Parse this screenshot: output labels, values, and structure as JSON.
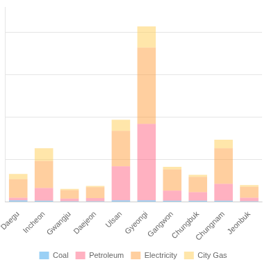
{
  "chart_data": {
    "type": "bar",
    "stacked": true,
    "categories": [
      "Daegu",
      "Incheon",
      "Gwangju",
      "Daejeon",
      "Ulsan",
      "Gyeongi",
      "Gangwon",
      "Chungbuk",
      "Chungnam",
      "Jeonbuk"
    ],
    "series": [
      {
        "name": "Coal",
        "values": [
          0.2,
          0.15,
          0.1,
          0.1,
          0.2,
          0.2,
          0.15,
          0.15,
          0.15,
          0.1
        ]
      },
      {
        "name": "Petroleum",
        "values": [
          0.3,
          1.5,
          0.3,
          0.35,
          4.0,
          9.0,
          1.2,
          1.0,
          2.0,
          0.4
        ]
      },
      {
        "name": "Electricity",
        "values": [
          2.2,
          3.2,
          1.0,
          1.3,
          4.2,
          9.0,
          2.5,
          1.8,
          4.2,
          1.3
        ]
      },
      {
        "name": "City Gas",
        "values": [
          0.6,
          1.5,
          0.15,
          0.15,
          1.3,
          2.5,
          0.3,
          0.25,
          1.0,
          0.2
        ]
      }
    ],
    "ylim": [
      0,
      23
    ],
    "yticks": [
      0,
      5,
      10,
      15,
      20
    ],
    "grid": true,
    "legend": "bottom",
    "tick_labels": "x"
  }
}
